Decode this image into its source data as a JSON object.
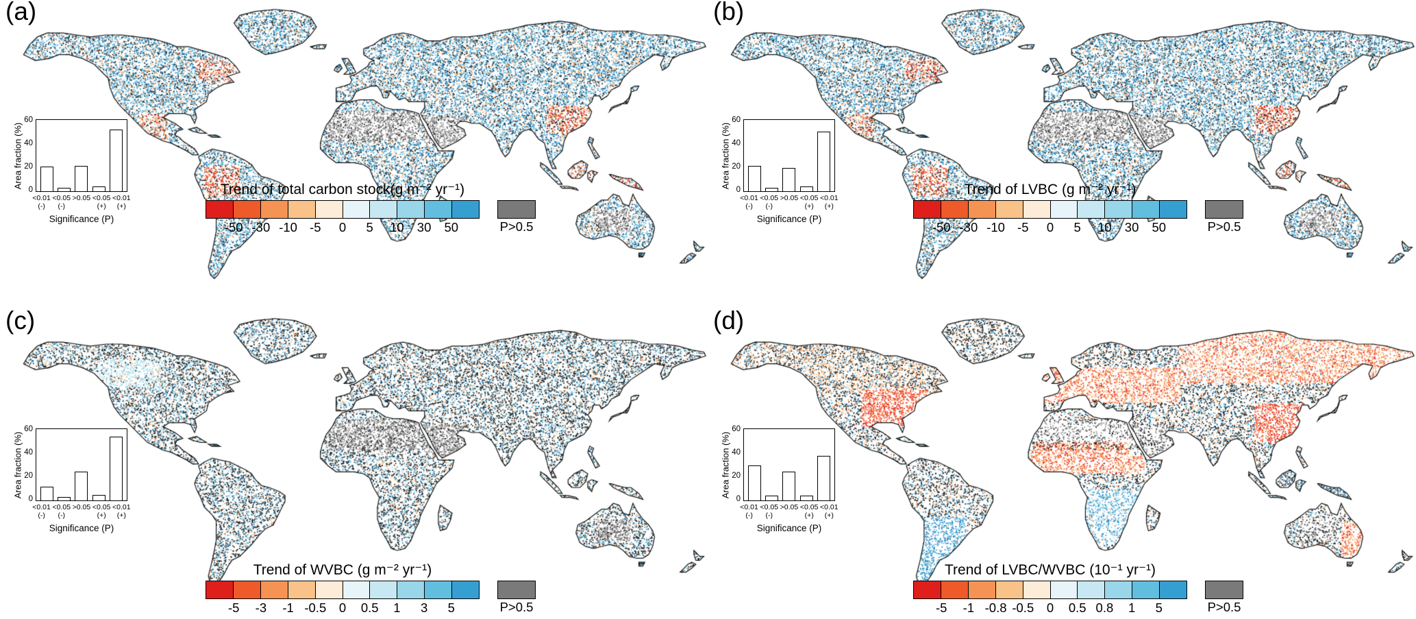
{
  "figure": {
    "background": "#ffffff",
    "panels": [
      {
        "label": "(a)",
        "map_name": "world-dot-map-total-carbon-stock-trend",
        "inset": {
          "ylabel": "Area fraction (%)",
          "xlabel": "Significance (P)",
          "ymax": 60,
          "yticks": [
            0,
            20,
            40,
            60
          ],
          "categories": [
            "<0.01\n(-)",
            "<0.05\n(-)",
            ">0.05",
            "<0.05\n(+)",
            "<0.01\n(+)"
          ],
          "values": [
            21,
            3,
            22,
            4,
            53
          ]
        },
        "colorbar": {
          "title": "Trend of total carbon stock(g m⁻² yr⁻¹)",
          "ticks": [
            "-50",
            "-30",
            "-10",
            "-5",
            "0",
            "5",
            "10",
            "30",
            "50"
          ],
          "colors": [
            "#df1f1c",
            "#ee5a29",
            "#f59355",
            "#f9c289",
            "#fcecd8",
            "#e7f5fa",
            "#c7e8f3",
            "#99d6ea",
            "#62bedf",
            "#369fd1"
          ],
          "nodata_color": "#7a7a7a",
          "nodata_label": "P>0.5"
        }
      },
      {
        "label": "(b)",
        "map_name": "world-dot-map-lvbc-trend",
        "inset": {
          "ylabel": "Area fraction (%)",
          "xlabel": "Significance (P)",
          "ymax": 60,
          "yticks": [
            0,
            20,
            40,
            60
          ],
          "categories": [
            "<0.01\n(-)",
            "<0.05\n(-)",
            ">0.05",
            "<0.05\n(+)",
            "<0.01\n(+)"
          ],
          "values": [
            22,
            3,
            20,
            4,
            51
          ]
        },
        "colorbar": {
          "title": "Trend of LVBC (g m⁻² yr⁻¹)",
          "ticks": [
            "-50",
            "-30",
            "-10",
            "-5",
            "0",
            "5",
            "10",
            "30",
            "50"
          ],
          "colors": [
            "#df1f1c",
            "#ee5a29",
            "#f59355",
            "#f9c289",
            "#fcecd8",
            "#e7f5fa",
            "#c7e8f3",
            "#99d6ea",
            "#62bedf",
            "#369fd1"
          ],
          "nodata_color": "#7a7a7a",
          "nodata_label": "P>0.5"
        }
      },
      {
        "label": "(c)",
        "map_name": "world-dot-map-wvbc-trend",
        "inset": {
          "ylabel": "Area fraction (%)",
          "xlabel": "Significance (P)",
          "ymax": 60,
          "yticks": [
            0,
            20,
            40,
            60
          ],
          "categories": [
            "<0.01\n(-)",
            "<0.05\n(-)",
            ">0.05",
            "<0.05\n(+)",
            "<0.01\n(+)"
          ],
          "values": [
            12,
            3,
            25,
            5,
            55
          ]
        },
        "colorbar": {
          "title": "Trend of WVBC (g m⁻² yr⁻¹)",
          "ticks": [
            "-5",
            "-3",
            "-1",
            "-0.5",
            "0",
            "0.5",
            "1",
            "3",
            "5"
          ],
          "colors": [
            "#df1f1c",
            "#ee5a29",
            "#f59355",
            "#f9c289",
            "#fcecd8",
            "#e7f5fa",
            "#c7e8f3",
            "#99d6ea",
            "#62bedf",
            "#369fd1"
          ],
          "nodata_color": "#7a7a7a",
          "nodata_label": "P>0.5"
        }
      },
      {
        "label": "(d)",
        "map_name": "world-dot-map-lvbc-wvbc-ratio-trend",
        "inset": {
          "ylabel": "Area fraction (%)",
          "xlabel": "Significance (P)",
          "ymax": 60,
          "yticks": [
            0,
            20,
            40,
            60
          ],
          "categories": [
            "<0.01\n(-)",
            "<0.05\n(-)",
            ">0.05",
            "<0.05\n(+)",
            "<0.01\n(+)"
          ],
          "values": [
            30,
            4,
            25,
            4,
            38
          ]
        },
        "colorbar": {
          "title": "Trend of LVBC/WVBC (10⁻¹ yr⁻¹)",
          "ticks": [
            "-5",
            "-1",
            "-0.8",
            "-0.5",
            "0",
            "0.5",
            "0.8",
            "1",
            "5"
          ],
          "colors": [
            "#df1f1c",
            "#ee5a29",
            "#f59355",
            "#f9c289",
            "#fcecd8",
            "#e7f5fa",
            "#c7e8f3",
            "#99d6ea",
            "#62bedf",
            "#369fd1"
          ],
          "nodata_color": "#7a7a7a",
          "nodata_label": "P>0.5"
        }
      }
    ]
  },
  "chart_data": [
    {
      "type": "bar",
      "panel": "a",
      "title": "Trend of total carbon stock(g m⁻² yr⁻¹)",
      "categories": [
        "<0.01 (-)",
        "<0.05 (-)",
        ">0.05",
        "<0.05 (+)",
        "<0.01 (+)"
      ],
      "values": [
        21,
        3,
        22,
        4,
        53
      ],
      "xlabel": "Significance (P)",
      "ylabel": "Area fraction (%)",
      "ylim": [
        0,
        60
      ],
      "colorbar_ticks": [
        -50,
        -30,
        -10,
        -5,
        0,
        5,
        10,
        30,
        50
      ],
      "nodata_label": "P>0.5"
    },
    {
      "type": "bar",
      "panel": "b",
      "title": "Trend of LVBC (g m⁻² yr⁻¹)",
      "categories": [
        "<0.01 (-)",
        "<0.05 (-)",
        ">0.05",
        "<0.05 (+)",
        "<0.01 (+)"
      ],
      "values": [
        22,
        3,
        20,
        4,
        51
      ],
      "xlabel": "Significance (P)",
      "ylabel": "Area fraction (%)",
      "ylim": [
        0,
        60
      ],
      "colorbar_ticks": [
        -50,
        -30,
        -10,
        -5,
        0,
        5,
        10,
        30,
        50
      ],
      "nodata_label": "P>0.5"
    },
    {
      "type": "bar",
      "panel": "c",
      "title": "Trend of WVBC (g m⁻² yr⁻¹)",
      "categories": [
        "<0.01 (-)",
        "<0.05 (-)",
        ">0.05",
        "<0.05 (+)",
        "<0.01 (+)"
      ],
      "values": [
        12,
        3,
        25,
        5,
        55
      ],
      "xlabel": "Significance (P)",
      "ylabel": "Area fraction (%)",
      "ylim": [
        0,
        60
      ],
      "colorbar_ticks": [
        -5,
        -3,
        -1,
        -0.5,
        0,
        0.5,
        1,
        3,
        5
      ],
      "nodata_label": "P>0.5"
    },
    {
      "type": "bar",
      "panel": "d",
      "title": "Trend of LVBC/WVBC (10⁻¹ yr⁻¹)",
      "categories": [
        "<0.01 (-)",
        "<0.05 (-)",
        ">0.05",
        "<0.05 (+)",
        "<0.01 (+)"
      ],
      "values": [
        30,
        4,
        25,
        4,
        38
      ],
      "xlabel": "Significance (P)",
      "ylabel": "Area fraction (%)",
      "ylim": [
        0,
        60
      ],
      "colorbar_ticks": [
        -5,
        -1,
        -0.8,
        -0.5,
        0,
        0.5,
        0.8,
        1,
        5
      ],
      "nodata_label": "P>0.5"
    }
  ]
}
